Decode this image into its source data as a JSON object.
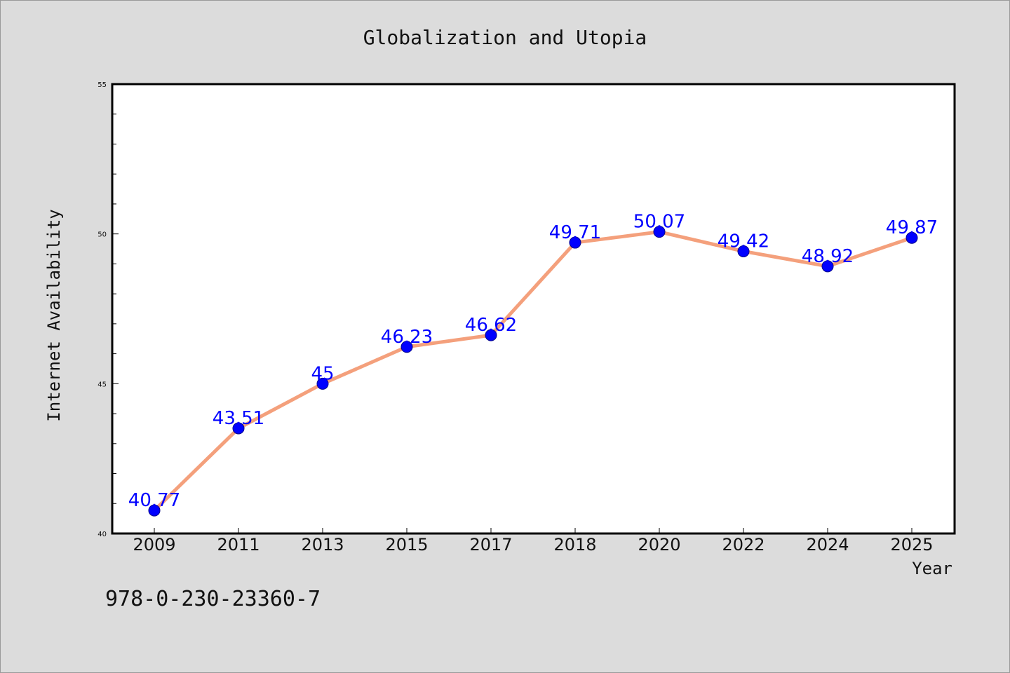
{
  "chart_data": {
    "type": "line",
    "title": "Globalization and Utopia",
    "xlabel": "Year",
    "ylabel": "Internet Availability",
    "categories": [
      "2009",
      "2011",
      "2013",
      "2015",
      "2017",
      "2018",
      "2020",
      "2022",
      "2024",
      "2025"
    ],
    "series": [
      {
        "values": [
          40.77,
          43.51,
          45,
          46.23,
          46.62,
          49.71,
          50.07,
          49.42,
          48.92,
          49.87
        ],
        "data_labels": [
          "40.77",
          "43.51",
          "45",
          "46.23",
          "46.62",
          "49.71",
          "50.07",
          "49.42",
          "48.92",
          "49.87"
        ],
        "line_color": "#f4a07c",
        "marker_color": "#0000ff"
      }
    ],
    "ylim": [
      40,
      55
    ],
    "yticks": [
      "40",
      "45",
      "50",
      "55"
    ],
    "grid": false,
    "legend": "none"
  },
  "footer_text": "978-0-230-23360-7"
}
